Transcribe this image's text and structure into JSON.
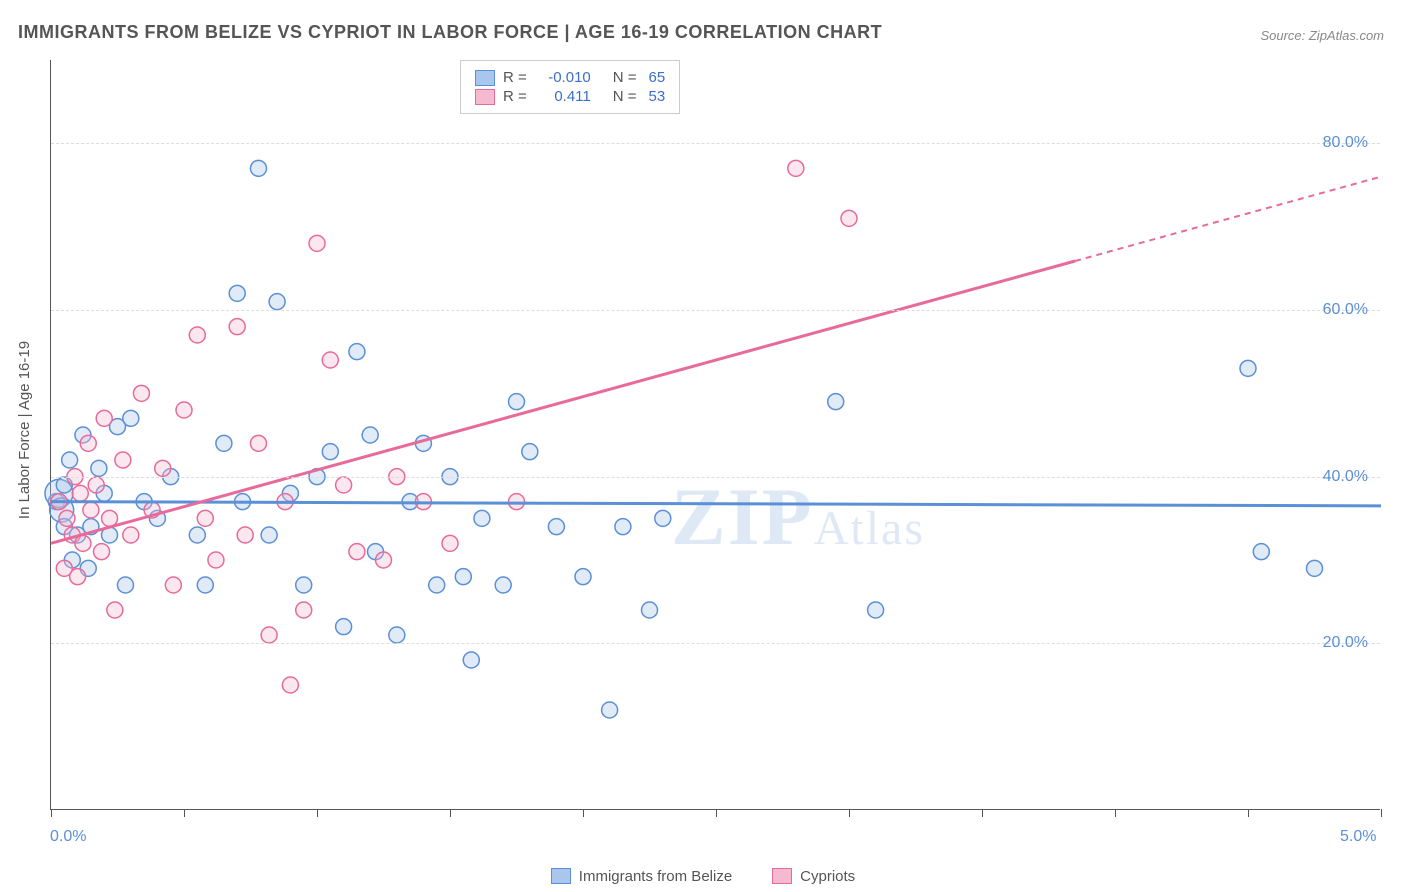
{
  "title": "IMMIGRANTS FROM BELIZE VS CYPRIOT IN LABOR FORCE | AGE 16-19 CORRELATION CHART",
  "source": "Source: ZipAtlas.com",
  "y_axis_label": "In Labor Force | Age 16-19",
  "watermark": {
    "main": "ZIP",
    "sub": "Atlas"
  },
  "chart": {
    "type": "scatter",
    "xlim": [
      0.0,
      5.0
    ],
    "ylim": [
      0.0,
      90.0
    ],
    "x_ticks": [
      0.0,
      0.5,
      1.0,
      1.5,
      2.0,
      2.5,
      3.0,
      3.5,
      4.0,
      4.5,
      5.0
    ],
    "x_tick_labels": {
      "0.0": "0.0%",
      "5.0": "5.0%"
    },
    "y_gridlines": [
      20.0,
      40.0,
      60.0,
      80.0
    ],
    "y_tick_labels": [
      "20.0%",
      "40.0%",
      "60.0%",
      "80.0%"
    ],
    "grid_color": "#dddddd",
    "background_color": "#ffffff",
    "axis_color": "#555555",
    "marker_radius": 8,
    "marker_stroke_width": 1.5,
    "marker_fill_opacity": 0.35,
    "line_width": 3,
    "series": [
      {
        "id": "belize",
        "label": "Immigrants from Belize",
        "color_stroke": "#5b8fd6",
        "color_fill": "#a9c6ec",
        "R": "-0.010",
        "N": "65",
        "regression": {
          "x1": 0.0,
          "y1": 37.0,
          "x2": 5.0,
          "y2": 36.5,
          "dash_from_x": 5.0
        },
        "points": [
          [
            0.02,
            37
          ],
          [
            0.03,
            38,
            14
          ],
          [
            0.04,
            36,
            12
          ],
          [
            0.05,
            34
          ],
          [
            0.05,
            39
          ],
          [
            0.07,
            42
          ],
          [
            0.08,
            30
          ],
          [
            0.1,
            33
          ],
          [
            0.12,
            45
          ],
          [
            0.14,
            29
          ],
          [
            0.15,
            34
          ],
          [
            0.18,
            41
          ],
          [
            0.2,
            38
          ],
          [
            0.22,
            33
          ],
          [
            0.25,
            46
          ],
          [
            0.28,
            27
          ],
          [
            0.3,
            47
          ],
          [
            0.35,
            37
          ],
          [
            0.4,
            35
          ],
          [
            0.45,
            40
          ],
          [
            0.55,
            33
          ],
          [
            0.58,
            27
          ],
          [
            0.65,
            44
          ],
          [
            0.7,
            62
          ],
          [
            0.72,
            37
          ],
          [
            0.78,
            77
          ],
          [
            0.82,
            33
          ],
          [
            0.85,
            61
          ],
          [
            0.9,
            38
          ],
          [
            0.95,
            27
          ],
          [
            1.0,
            40
          ],
          [
            1.05,
            43
          ],
          [
            1.1,
            22
          ],
          [
            1.15,
            55
          ],
          [
            1.2,
            45
          ],
          [
            1.22,
            31
          ],
          [
            1.3,
            21
          ],
          [
            1.35,
            37
          ],
          [
            1.4,
            44
          ],
          [
            1.45,
            27
          ],
          [
            1.5,
            40
          ],
          [
            1.55,
            28
          ],
          [
            1.58,
            18
          ],
          [
            1.62,
            35
          ],
          [
            1.7,
            27
          ],
          [
            1.75,
            49
          ],
          [
            1.8,
            43
          ],
          [
            1.9,
            34
          ],
          [
            2.0,
            28
          ],
          [
            2.1,
            12
          ],
          [
            2.15,
            34
          ],
          [
            2.25,
            24
          ],
          [
            2.3,
            35
          ],
          [
            2.95,
            49
          ],
          [
            3.1,
            24
          ],
          [
            4.5,
            53
          ],
          [
            4.55,
            31
          ],
          [
            4.75,
            29
          ]
        ]
      },
      {
        "id": "cypriots",
        "label": "Cypriots",
        "color_stroke": "#e86a9a",
        "color_fill": "#f5b9d0",
        "R": "0.411",
        "N": "53",
        "regression": {
          "x1": 0.0,
          "y1": 32.0,
          "x2": 5.0,
          "y2": 76.0,
          "dash_from_x": 3.85
        },
        "points": [
          [
            0.03,
            37
          ],
          [
            0.05,
            29
          ],
          [
            0.06,
            35
          ],
          [
            0.08,
            33
          ],
          [
            0.09,
            40
          ],
          [
            0.1,
            28
          ],
          [
            0.11,
            38
          ],
          [
            0.12,
            32
          ],
          [
            0.14,
            44
          ],
          [
            0.15,
            36
          ],
          [
            0.17,
            39
          ],
          [
            0.19,
            31
          ],
          [
            0.2,
            47
          ],
          [
            0.22,
            35
          ],
          [
            0.24,
            24
          ],
          [
            0.27,
            42
          ],
          [
            0.3,
            33
          ],
          [
            0.34,
            50
          ],
          [
            0.38,
            36
          ],
          [
            0.42,
            41
          ],
          [
            0.46,
            27
          ],
          [
            0.5,
            48
          ],
          [
            0.55,
            57
          ],
          [
            0.58,
            35
          ],
          [
            0.62,
            30
          ],
          [
            0.7,
            58
          ],
          [
            0.73,
            33
          ],
          [
            0.78,
            44
          ],
          [
            0.82,
            21
          ],
          [
            0.88,
            37
          ],
          [
            0.9,
            15
          ],
          [
            0.95,
            24
          ],
          [
            1.0,
            68
          ],
          [
            1.05,
            54
          ],
          [
            1.1,
            39
          ],
          [
            1.15,
            31
          ],
          [
            1.25,
            30
          ],
          [
            1.3,
            40
          ],
          [
            1.4,
            37
          ],
          [
            1.5,
            32
          ],
          [
            1.75,
            37
          ],
          [
            2.8,
            77
          ],
          [
            3.0,
            71
          ]
        ]
      }
    ]
  },
  "legend_box": {
    "rows": [
      {
        "swatch_fill": "#a9c6ec",
        "swatch_stroke": "#5b8fd6",
        "r_label": "R =",
        "r_val": "-0.010",
        "n_label": "N =",
        "n_val": "65"
      },
      {
        "swatch_fill": "#f5b9d0",
        "swatch_stroke": "#e86a9a",
        "r_label": "R =",
        "r_val": "0.411",
        "n_label": "N =",
        "n_val": "53"
      }
    ]
  },
  "bottom_legend": [
    {
      "swatch_fill": "#a9c6ec",
      "swatch_stroke": "#5b8fd6",
      "label": "Immigrants from Belize"
    },
    {
      "swatch_fill": "#f5b9d0",
      "swatch_stroke": "#e86a9a",
      "label": "Cypriots"
    }
  ]
}
